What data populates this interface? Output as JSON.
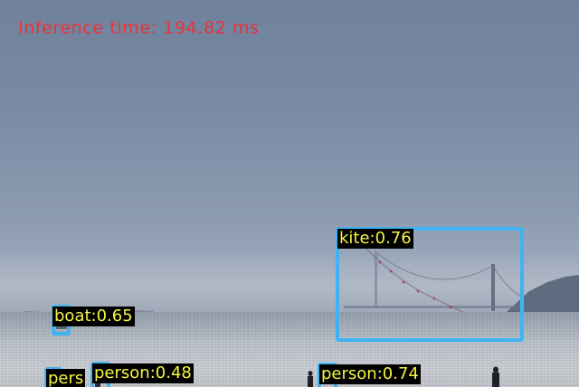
{
  "inference_text": "Inference time: 194.82 ms",
  "detections": [
    {
      "label": "kite:0.76"
    },
    {
      "label": "boat:0.65"
    },
    {
      "label": "person:0.48"
    },
    {
      "label": "person:0.74"
    },
    {
      "label": "pers"
    }
  ],
  "colors": {
    "box": "#3fb3f4",
    "label_text": "#f5f542",
    "label_bg": "#000000",
    "inference_text": "#e8333b"
  }
}
